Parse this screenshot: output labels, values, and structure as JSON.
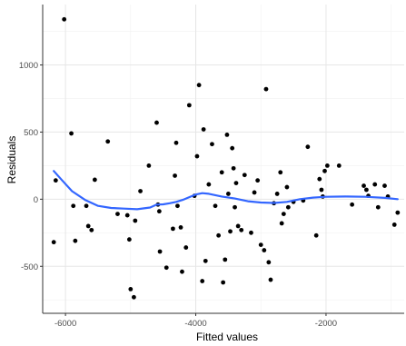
{
  "chart_data": {
    "type": "scatter",
    "title": "",
    "xlabel": "Fitted values",
    "ylabel": "Residuals",
    "xlim": [
      -6350,
      -800
    ],
    "ylim": [
      -850,
      1450
    ],
    "x_ticks": [
      -6000,
      -4000,
      -2000
    ],
    "x_tick_labels": [
      "-6000",
      "-4000",
      "-2000"
    ],
    "y_ticks": [
      -500,
      0,
      500,
      1000
    ],
    "y_tick_labels": [
      "-500",
      "0",
      "500",
      "1000"
    ],
    "grid": true,
    "legend": "none",
    "colors": {
      "points": "#000000",
      "smooth": "#3366FF",
      "grid_major": "#e6e6e6",
      "grid_minor": "#f2f2f2",
      "axis": "#333333",
      "tick_label": "#4d4d4d"
    },
    "points": [
      {
        "x": -6180,
        "y": -320
      },
      {
        "x": -6150,
        "y": 140
      },
      {
        "x": -6020,
        "y": 1340
      },
      {
        "x": -5910,
        "y": 490
      },
      {
        "x": -5880,
        "y": -50
      },
      {
        "x": -5850,
        "y": -310
      },
      {
        "x": -5680,
        "y": -50
      },
      {
        "x": -5650,
        "y": -200
      },
      {
        "x": -5600,
        "y": -230
      },
      {
        "x": -5550,
        "y": 145
      },
      {
        "x": -5350,
        "y": 430
      },
      {
        "x": -5200,
        "y": -110
      },
      {
        "x": -5050,
        "y": -120
      },
      {
        "x": -5020,
        "y": -300
      },
      {
        "x": -5000,
        "y": -670
      },
      {
        "x": -4950,
        "y": -730
      },
      {
        "x": -4930,
        "y": -160
      },
      {
        "x": -4850,
        "y": 60
      },
      {
        "x": -4720,
        "y": 250
      },
      {
        "x": -4600,
        "y": 570
      },
      {
        "x": -4580,
        "y": -40
      },
      {
        "x": -4560,
        "y": -90
      },
      {
        "x": -4550,
        "y": -390
      },
      {
        "x": -4450,
        "y": -510
      },
      {
        "x": -4350,
        "y": -220
      },
      {
        "x": -4320,
        "y": 175
      },
      {
        "x": -4300,
        "y": 420
      },
      {
        "x": -4280,
        "y": -50
      },
      {
        "x": -4230,
        "y": -210
      },
      {
        "x": -4210,
        "y": -540
      },
      {
        "x": -4150,
        "y": -360
      },
      {
        "x": -4100,
        "y": 700
      },
      {
        "x": -4020,
        "y": 25
      },
      {
        "x": -3980,
        "y": 320
      },
      {
        "x": -3950,
        "y": 850
      },
      {
        "x": -3900,
        "y": -610
      },
      {
        "x": -3880,
        "y": 520
      },
      {
        "x": -3850,
        "y": -460
      },
      {
        "x": -3800,
        "y": 110
      },
      {
        "x": -3750,
        "y": 410
      },
      {
        "x": -3700,
        "y": -50
      },
      {
        "x": -3650,
        "y": -270
      },
      {
        "x": -3600,
        "y": 200
      },
      {
        "x": -3580,
        "y": -620
      },
      {
        "x": -3550,
        "y": -450
      },
      {
        "x": -3520,
        "y": 480
      },
      {
        "x": -3500,
        "y": 40
      },
      {
        "x": -3470,
        "y": -240
      },
      {
        "x": -3440,
        "y": 380
      },
      {
        "x": -3420,
        "y": 230
      },
      {
        "x": -3400,
        "y": -60
      },
      {
        "x": -3380,
        "y": 120
      },
      {
        "x": -3350,
        "y": -200
      },
      {
        "x": -3300,
        "y": -230
      },
      {
        "x": -3250,
        "y": 180
      },
      {
        "x": -3150,
        "y": -250
      },
      {
        "x": -3100,
        "y": 50
      },
      {
        "x": -3050,
        "y": 140
      },
      {
        "x": -3000,
        "y": -340
      },
      {
        "x": -2950,
        "y": -380
      },
      {
        "x": -2920,
        "y": 820
      },
      {
        "x": -2880,
        "y": -470
      },
      {
        "x": -2850,
        "y": -600
      },
      {
        "x": -2800,
        "y": -30
      },
      {
        "x": -2750,
        "y": 40
      },
      {
        "x": -2700,
        "y": 200
      },
      {
        "x": -2680,
        "y": -180
      },
      {
        "x": -2650,
        "y": -110
      },
      {
        "x": -2600,
        "y": 90
      },
      {
        "x": -2580,
        "y": -60
      },
      {
        "x": -2500,
        "y": -20
      },
      {
        "x": -2350,
        "y": -10
      },
      {
        "x": -2280,
        "y": 390
      },
      {
        "x": -2150,
        "y": -270
      },
      {
        "x": -2100,
        "y": 150
      },
      {
        "x": -2070,
        "y": 70
      },
      {
        "x": -2050,
        "y": 20
      },
      {
        "x": -2020,
        "y": 210
      },
      {
        "x": -1980,
        "y": 250
      },
      {
        "x": -1800,
        "y": 250
      },
      {
        "x": -1600,
        "y": -40
      },
      {
        "x": -1420,
        "y": 100
      },
      {
        "x": -1380,
        "y": 70
      },
      {
        "x": -1350,
        "y": 25
      },
      {
        "x": -1250,
        "y": 110
      },
      {
        "x": -1200,
        "y": -60
      },
      {
        "x": -1100,
        "y": 100
      },
      {
        "x": -1050,
        "y": 20
      },
      {
        "x": -950,
        "y": -190
      },
      {
        "x": -900,
        "y": -100
      }
    ],
    "smooth": [
      {
        "x": -6180,
        "y": 210
      },
      {
        "x": -6050,
        "y": 140
      },
      {
        "x": -5900,
        "y": 60
      },
      {
        "x": -5700,
        "y": -5
      },
      {
        "x": -5500,
        "y": -50
      },
      {
        "x": -5300,
        "y": -65
      },
      {
        "x": -5100,
        "y": -70
      },
      {
        "x": -4900,
        "y": -75
      },
      {
        "x": -4700,
        "y": -62
      },
      {
        "x": -4600,
        "y": -40
      },
      {
        "x": -4500,
        "y": -38
      },
      {
        "x": -4400,
        "y": -30
      },
      {
        "x": -4300,
        "y": -20
      },
      {
        "x": -4200,
        "y": -5
      },
      {
        "x": -4100,
        "y": 15
      },
      {
        "x": -4000,
        "y": 35
      },
      {
        "x": -3900,
        "y": 45
      },
      {
        "x": -3800,
        "y": 40
      },
      {
        "x": -3600,
        "y": 20
      },
      {
        "x": -3400,
        "y": 5
      },
      {
        "x": -3200,
        "y": -15
      },
      {
        "x": -3000,
        "y": -25
      },
      {
        "x": -2800,
        "y": -28
      },
      {
        "x": -2600,
        "y": -20
      },
      {
        "x": -2400,
        "y": 0
      },
      {
        "x": -2200,
        "y": 12
      },
      {
        "x": -2000,
        "y": 18
      },
      {
        "x": -1700,
        "y": 20
      },
      {
        "x": -1400,
        "y": 18
      },
      {
        "x": -1100,
        "y": 10
      },
      {
        "x": -900,
        "y": 0
      }
    ]
  }
}
